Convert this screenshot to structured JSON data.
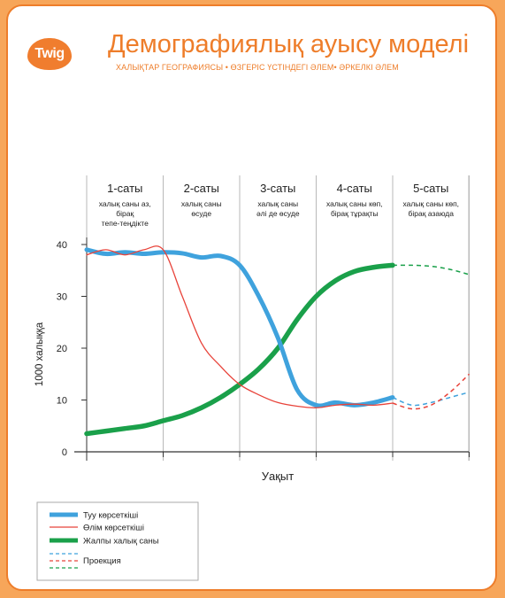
{
  "header": {
    "logo_text": "Twig",
    "title": "Демографиялық ауысу моделі",
    "subtitle": "ХАЛЫҚТАР ГЕОГРАФИЯСЫ • ӨЗГЕРІС ҮСТІНДЕГІ ӘЛЕМ• ӘРКЕЛКІ ӘЛЕМ"
  },
  "stages": [
    {
      "name": "1-саты",
      "desc": [
        "халық саны аз,",
        "бірақ",
        "тепе-теңдікте"
      ]
    },
    {
      "name": "2-саты",
      "desc": [
        "халық саны",
        "өсуде"
      ]
    },
    {
      "name": "3-саты",
      "desc": [
        "халық саны",
        "әлі де өсуде"
      ]
    },
    {
      "name": "4-саты",
      "desc": [
        "халық саны көп,",
        "бірақ тұрақты"
      ]
    },
    {
      "name": "5-саты",
      "desc": [
        "халық саны көп,",
        "бірақ азаюда"
      ]
    }
  ],
  "chart_data": {
    "type": "line",
    "ylabel": "1000 халыққа",
    "xlabel": "Уақыт",
    "yticks": [
      0,
      10,
      20,
      30,
      40
    ],
    "ylim": [
      0,
      45
    ],
    "grid": "vertical stage dividers",
    "legend_position": "bottom-left",
    "x_stage_boundaries": [
      0,
      1,
      2,
      3,
      4,
      5
    ],
    "series": [
      {
        "name": "Туу көрсеткіші",
        "color": "#3fa2dd",
        "x": [
          0,
          0.25,
          0.5,
          0.75,
          1,
          1.25,
          1.5,
          1.75,
          2,
          2.25,
          2.5,
          2.75,
          3,
          3.25,
          3.5,
          3.75,
          4
        ],
        "y": [
          39,
          38.2,
          38.5,
          38.2,
          38.5,
          38.3,
          37.5,
          37.8,
          36,
          30,
          22,
          12,
          9,
          9.5,
          9,
          9.5,
          10.5
        ]
      },
      {
        "name": "Өлім көрсеткіші",
        "color": "#e8433a",
        "x": [
          0,
          0.25,
          0.5,
          0.75,
          1,
          1.25,
          1.5,
          1.75,
          2,
          2.25,
          2.5,
          2.75,
          3,
          3.25,
          3.5,
          3.75,
          4
        ],
        "y": [
          38,
          39,
          38,
          39,
          39,
          30,
          21,
          16.5,
          13,
          11,
          9.5,
          8.8,
          8.5,
          9,
          9.2,
          9,
          9.4
        ]
      },
      {
        "name": "Жалпы халық саны",
        "color": "#1aa04a",
        "x": [
          0,
          0.25,
          0.5,
          0.75,
          1,
          1.25,
          1.5,
          1.75,
          2,
          2.25,
          2.5,
          2.75,
          3,
          3.25,
          3.5,
          3.75,
          4
        ],
        "y": [
          3.5,
          4,
          4.5,
          5,
          6,
          7,
          8.5,
          10.5,
          13,
          16,
          20,
          25.5,
          30,
          33,
          34.8,
          35.6,
          36
        ]
      }
    ],
    "projection": {
      "legend_label": "Проекция",
      "x": [
        4,
        4.25,
        4.5,
        4.75,
        5
      ],
      "birth": [
        10.5,
        9,
        9.5,
        10.5,
        11.5
      ],
      "death": [
        9.4,
        8.3,
        9,
        11.5,
        15
      ],
      "population": [
        36,
        36,
        35.8,
        35.2,
        34.2
      ]
    }
  }
}
